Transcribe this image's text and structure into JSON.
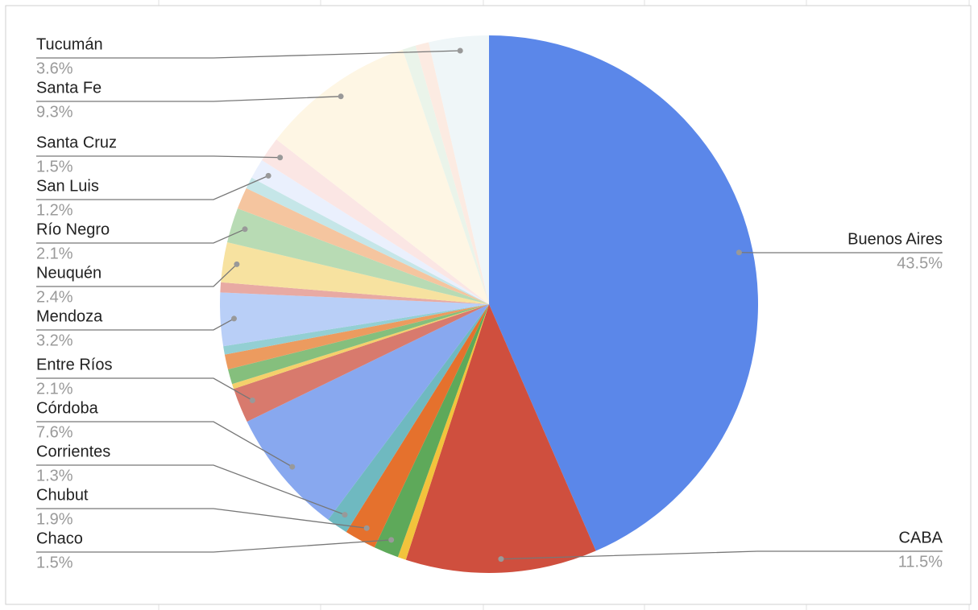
{
  "chart_data": {
    "type": "pie",
    "categories": [
      "Buenos Aires",
      "CABA",
      null,
      "Chaco",
      "Chubut",
      "Corrientes",
      "Córdoba",
      "Entre Ríos",
      null,
      null,
      null,
      null,
      "Mendoza",
      null,
      "Neuquén",
      "Río Negro",
      null,
      null,
      "San Luis",
      "Santa Cruz",
      "Santa Fe",
      null,
      null,
      "Tucumán"
    ],
    "values": [
      43.5,
      11.5,
      0.5,
      1.5,
      1.9,
      1.3,
      7.6,
      2.1,
      0.3,
      0.9,
      0.9,
      0.5,
      3.2,
      0.6,
      2.4,
      2.1,
      1.3,
      0.7,
      1.2,
      1.5,
      9.3,
      0.8,
      0.8,
      3.6
    ],
    "value_labels": [
      "43.5%",
      "11.5%",
      null,
      "1.5%",
      "1.9%",
      "1.3%",
      "7.6%",
      "2.1%",
      null,
      null,
      null,
      null,
      "3.2%",
      null,
      "2.4%",
      "2.1%",
      null,
      null,
      "1.2%",
      "1.5%",
      "9.3%",
      null,
      null,
      "3.6%"
    ],
    "colors": [
      "#5b87e9",
      "#cf4f3e",
      "#f2c33c",
      "#5ea95a",
      "#e5712d",
      "#6fb9c0",
      "#88a8ef",
      "#d87a6d",
      "#f4d06b",
      "#85bf7d",
      "#ec9b5f",
      "#93cfd3",
      "#b9cff7",
      "#e8aaa3",
      "#f7e2a0",
      "#b8dbb4",
      "#f5c59f",
      "#c5e6e8",
      "#eaf0fd",
      "#fbe6e4",
      "#fef6e4",
      "#eaf4ea",
      "#fcebe2",
      "#eff6f8"
    ]
  }
}
